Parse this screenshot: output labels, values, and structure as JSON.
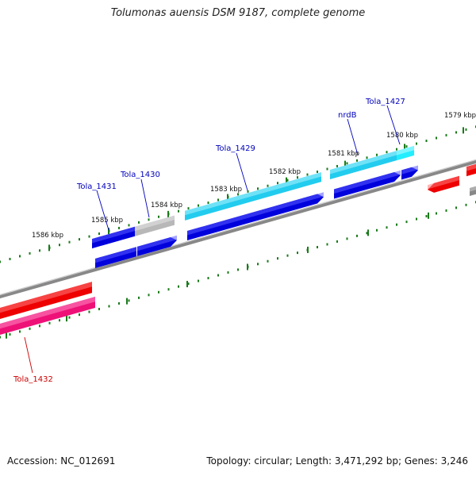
{
  "title": "Tolumonas auensis DSM 9187, complete genome",
  "footer": {
    "accession": "Accession: NC_012691",
    "summary": "Topology: circular; Length: 3,471,292 bp; Genes: 3,246"
  },
  "colors": {
    "backbone": "#808080",
    "tick": "#1a7a1a",
    "strand_forward": "#0000dd",
    "strand_highlight": "#22ccee",
    "pseudo_gray": "#b8b8b8",
    "reverse_red": "#ee0000",
    "reverse_magenta": "#ee1177",
    "label_blue": "#0000bb",
    "label_red": "#cc0000"
  },
  "kbp_labels": [
    "1586 kbp",
    "1585 kbp",
    "1584 kbp",
    "1583 kbp",
    "1582 kbp",
    "1581 kbp",
    "1580 kbp",
    "1579 kbp"
  ],
  "gene_labels": [
    {
      "text": "Tola_1431",
      "color": "blue"
    },
    {
      "text": "Tola_1430",
      "color": "blue"
    },
    {
      "text": "Tola_1429",
      "color": "blue"
    },
    {
      "text": "nrdB",
      "color": "blue"
    },
    {
      "text": "Tola_1427",
      "color": "blue"
    },
    {
      "text": "Tola_1432",
      "color": "red"
    }
  ]
}
